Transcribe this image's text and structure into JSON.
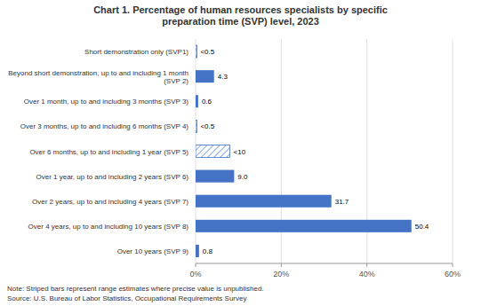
{
  "chart_data": {
    "type": "bar",
    "orientation": "horizontal",
    "title": "Chart 1. Percentage of human resources specialists by specific\npreparation time (SVP) level, 2023",
    "categories": [
      "Short demonstration only (SVP1)",
      "Beyond short demonstration, up to and including 1 month\n(SVP 2)",
      "Over 1 month, up to and including 3 months (SVP 3)",
      "Over 3 months, up to and including 6 months (SVP 4)",
      "Over 6 months, up to and including 1 year (SVP 5)",
      "Over 1 year, up to and including 2 years (SVP 6)",
      "Over 2 years, up to and including 4 years (SVP 7)",
      "Over 4 years, up to and including 10 years (SVP 8)",
      "Over 10 years (SVP 9)"
    ],
    "values": [
      0.3,
      4.3,
      0.6,
      0.3,
      8.0,
      9.0,
      31.7,
      50.4,
      0.8
    ],
    "value_labels": [
      "<0.5",
      "4.3",
      "0.6",
      "<0.5",
      "<10",
      "9.0",
      "31.7",
      "50.4",
      "0.8"
    ],
    "striped": [
      true,
      false,
      false,
      true,
      true,
      false,
      false,
      false,
      false
    ],
    "data_labels": true,
    "color": "#4472C4",
    "xlim": [
      0,
      60
    ],
    "xticks": [
      {
        "value": 0,
        "label": "0%"
      },
      {
        "value": 20,
        "label": "20%"
      },
      {
        "value": 40,
        "label": "40%"
      },
      {
        "value": 60,
        "label": "60%"
      }
    ],
    "grid": true,
    "annotations": [
      "Note: Striped bars represent range estimates where precise value is unpublished.",
      "Source: U.S. Bureau of Labor Statistics, Occupational Requirements Survey"
    ]
  }
}
